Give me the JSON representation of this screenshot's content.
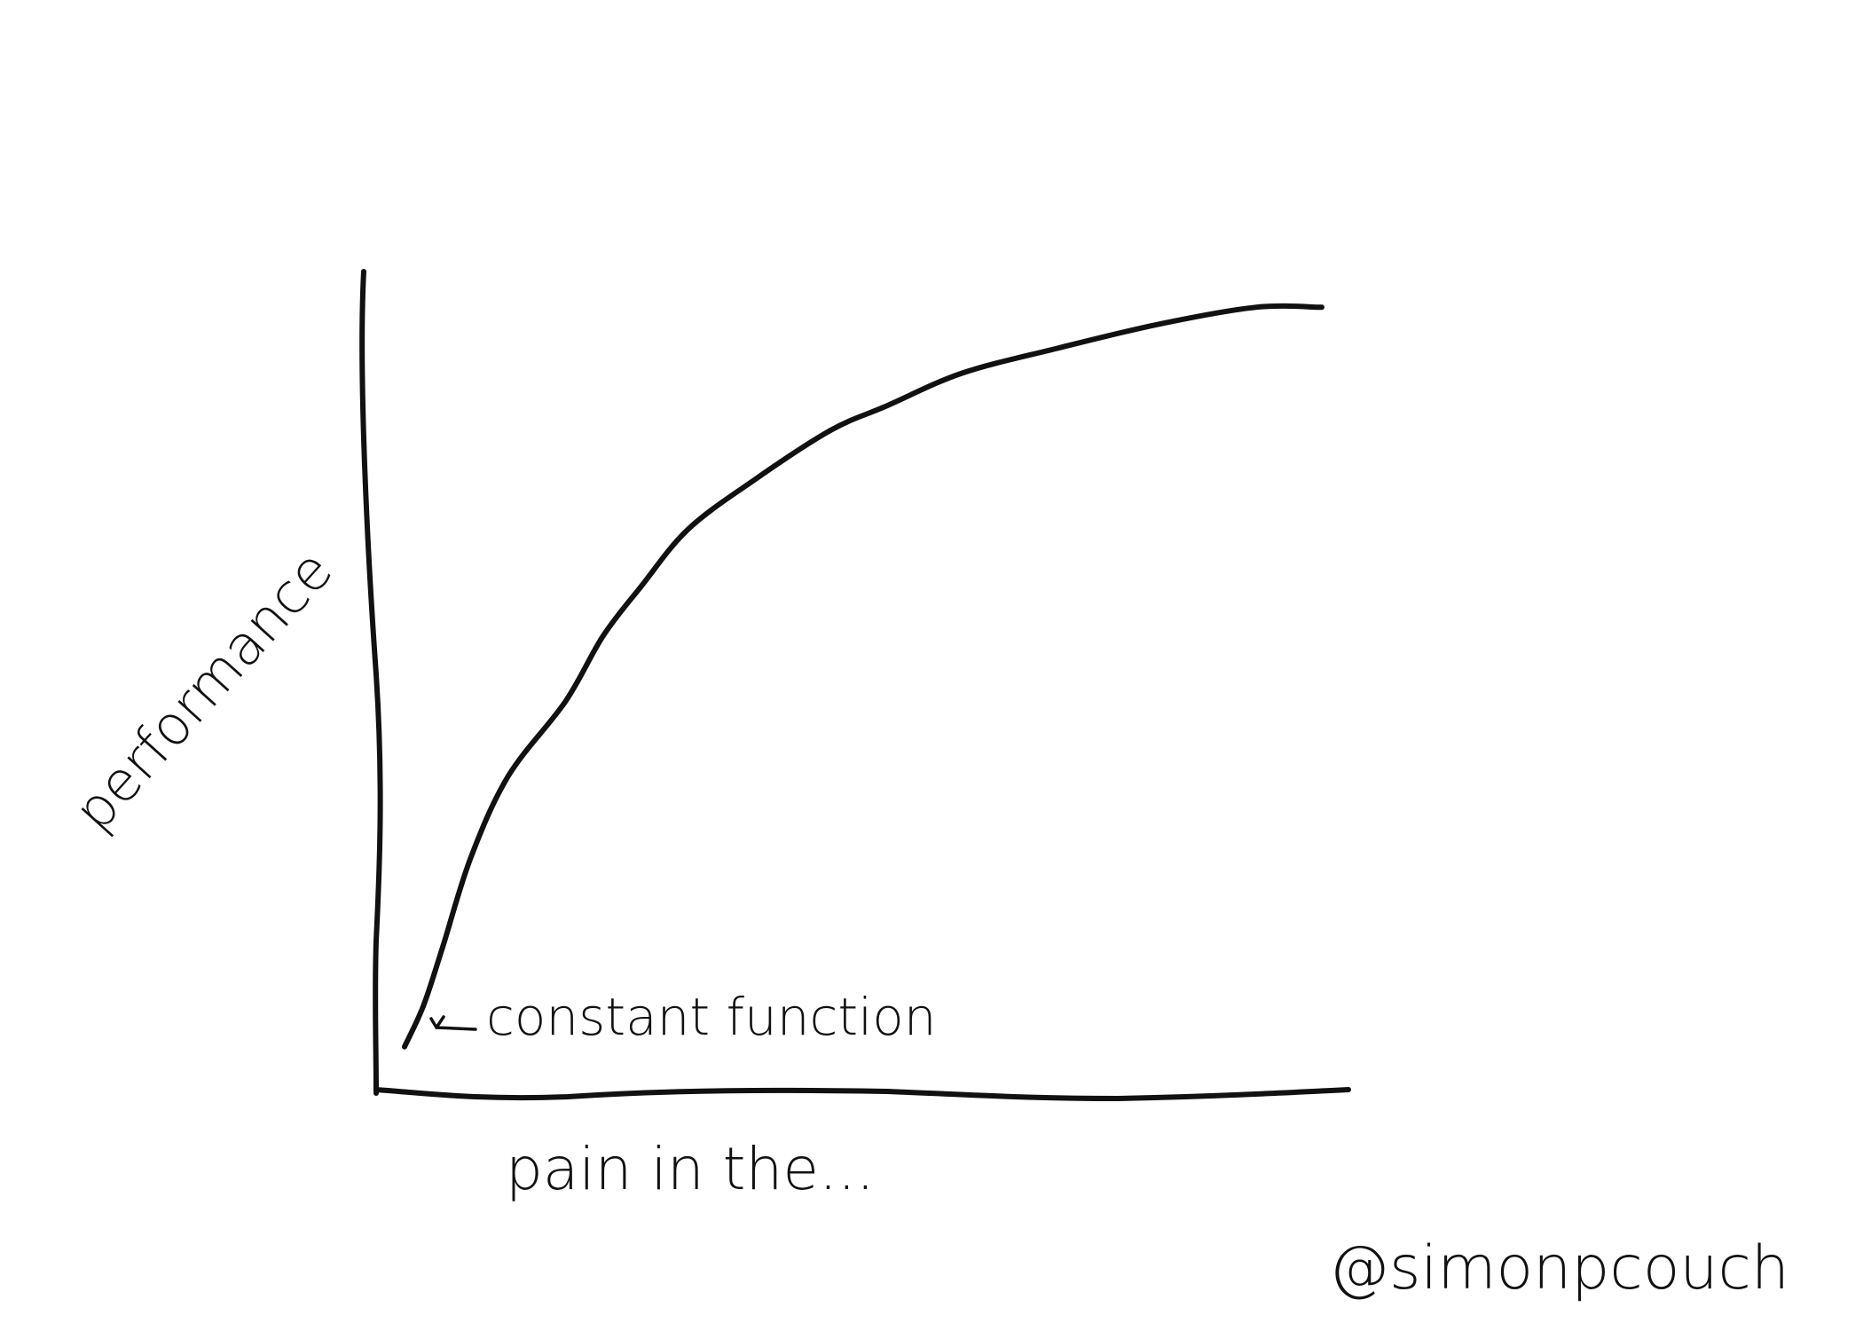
{
  "chart_data": {
    "type": "line",
    "title": "",
    "xlabel": "pain in the...",
    "ylabel": "performance",
    "x_ticks": [],
    "y_ticks": [],
    "grid": false,
    "legend": "none",
    "series": [
      {
        "points": [
          [
            0.03,
            0.05
          ],
          [
            0.05,
            0.1
          ],
          [
            0.07,
            0.17
          ],
          [
            0.1,
            0.28
          ],
          [
            0.14,
            0.38
          ],
          [
            0.2,
            0.47
          ],
          [
            0.24,
            0.55
          ],
          [
            0.28,
            0.61
          ],
          [
            0.33,
            0.68
          ],
          [
            0.4,
            0.74
          ],
          [
            0.48,
            0.8
          ],
          [
            0.54,
            0.83
          ],
          [
            0.62,
            0.87
          ],
          [
            0.72,
            0.9
          ],
          [
            0.83,
            0.93
          ],
          [
            0.93,
            0.95
          ],
          [
            1.0,
            0.95
          ]
        ]
      }
    ],
    "annotations": [
      {
        "text": "constant function",
        "x": 0.03,
        "y": 0.05
      }
    ],
    "ylim": [
      0,
      1
    ],
    "xlim": [
      0,
      1
    ],
    "colors": {
      "ink": "#111111",
      "background": "#ffffff"
    }
  },
  "signature": "@simonpcouch"
}
